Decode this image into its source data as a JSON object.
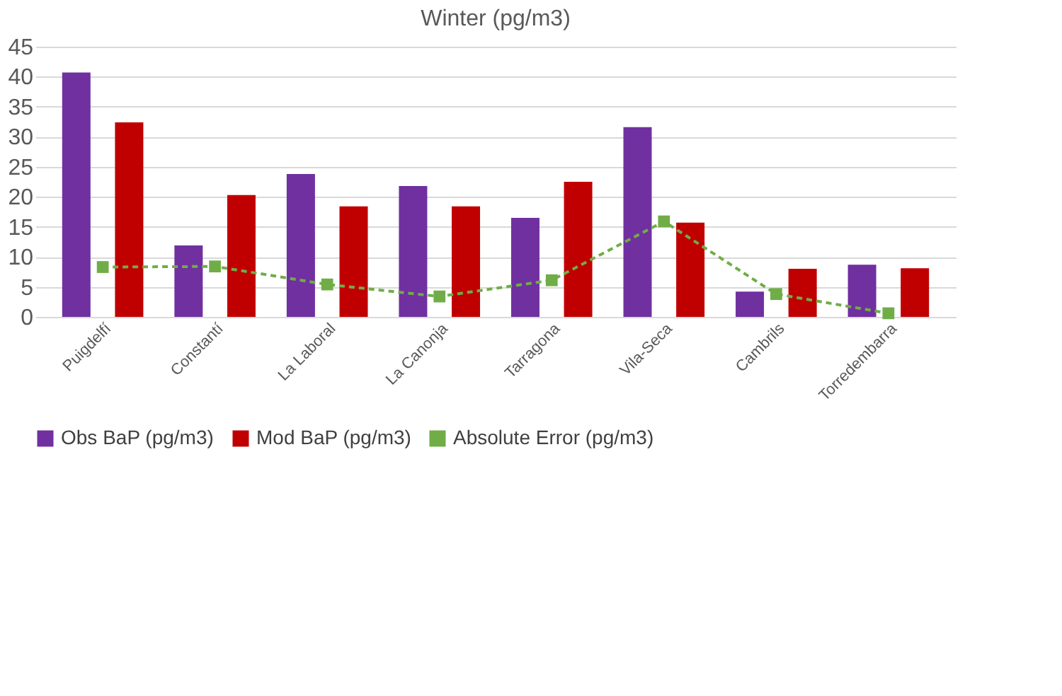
{
  "chart_data": {
    "type": "bar",
    "title": "Winter (pg/m3)",
    "categories": [
      "Puigdelfí",
      "Constantí",
      "La Laboral",
      "La Canonja",
      "Tarragona",
      "Vila-Seca",
      "Cambrils",
      "Torredembarra"
    ],
    "series": [
      {
        "name": "Obs BaP (pg/m3)",
        "color": "#7030a0",
        "values": [
          40.7,
          11.9,
          23.8,
          21.8,
          16.5,
          31.6,
          4.2,
          8.7
        ]
      },
      {
        "name": "Mod BaP (pg/m3)",
        "color": "#c00000",
        "values": [
          32.4,
          20.3,
          18.4,
          18.4,
          22.5,
          15.7,
          8.0,
          8.1
        ]
      },
      {
        "name": "Absolute Error (pg/m3)",
        "color": "#70ad47",
        "type": "line",
        "marker": "square",
        "line_style": "dashed",
        "values": [
          8.3,
          8.4,
          5.4,
          3.4,
          6.1,
          15.9,
          3.8,
          0.6
        ]
      }
    ],
    "ylim": [
      0,
      45
    ],
    "yticks": [
      0,
      5,
      10,
      15,
      20,
      25,
      30,
      35,
      40,
      45
    ],
    "grid": "y",
    "legend": "bottom"
  }
}
